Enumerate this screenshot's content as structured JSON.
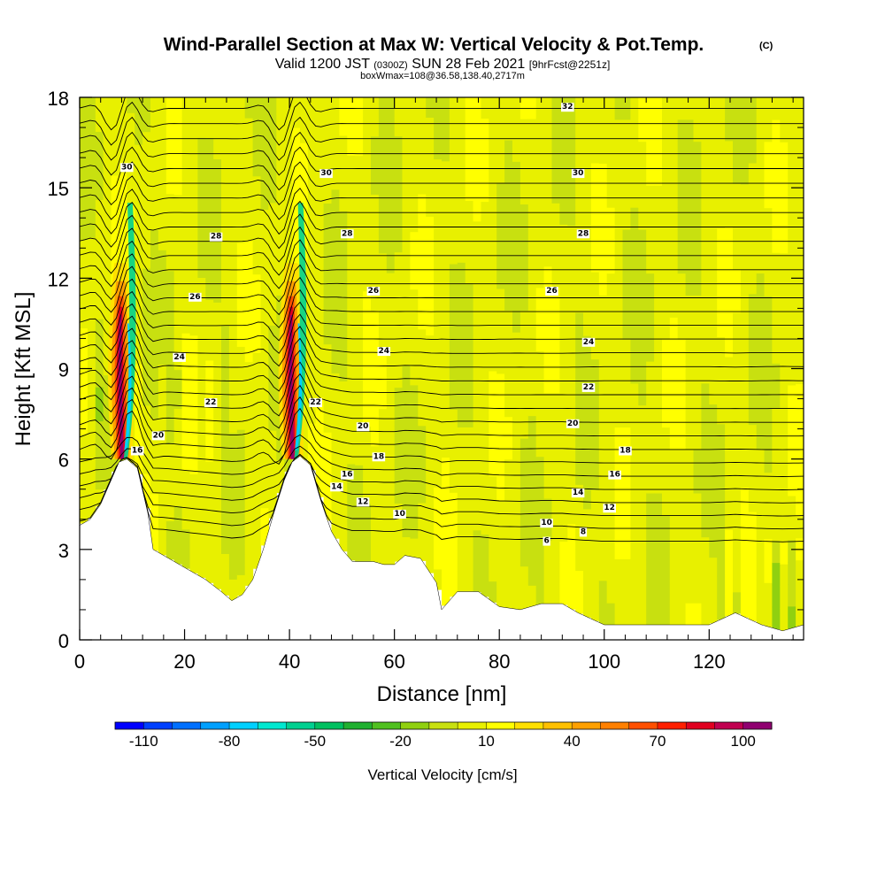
{
  "chart_data": {
    "type": "heatmap",
    "title": "Wind-Parallel Section at Max W: Vertical Velocity & Pot.Temp.",
    "title_mark": "(C)",
    "subtitle": {
      "valid": "Valid 1200 JST",
      "utc": "(0300Z)",
      "date": "SUN 28 Feb 2021",
      "forecast": "[9hrFcst@2251z]"
    },
    "box_info": "boxWmax=108@36.58,138.40,2717m",
    "xlabel": "Distance [nm]",
    "ylabel": "Height [Kft MSL]",
    "xlim": [
      0,
      138
    ],
    "ylim": [
      0,
      18
    ],
    "xticks": [
      0,
      20,
      40,
      60,
      80,
      100,
      120
    ],
    "yticks": [
      0,
      3,
      6,
      9,
      12,
      15,
      18
    ],
    "colorbar": {
      "label": "Vertical Velocity [cm/s]",
      "min": -120,
      "max": 110,
      "step": 10,
      "tick_values": [
        -110,
        -80,
        -50,
        -20,
        10,
        40,
        70,
        100
      ],
      "tick_labels": [
        "-110",
        "-80",
        "-50",
        "-20",
        "10",
        "40",
        "70",
        "100"
      ],
      "colors": [
        "#0000ff",
        "#0040ff",
        "#0070ff",
        "#00a0ff",
        "#00d0ff",
        "#00e8d0",
        "#00d090",
        "#00c060",
        "#20b030",
        "#50c020",
        "#90d010",
        "#c8e010",
        "#e8f000",
        "#ffff00",
        "#ffe000",
        "#ffc000",
        "#ffa000",
        "#ff8000",
        "#ff5000",
        "#ff2000",
        "#e00020",
        "#c00050",
        "#900070"
      ]
    },
    "terrain_kft": [
      [
        0,
        3.8
      ],
      [
        2,
        4.0
      ],
      [
        4,
        4.5
      ],
      [
        6,
        5.3
      ],
      [
        7.5,
        5.9
      ],
      [
        9,
        6.0
      ],
      [
        11,
        5.7
      ],
      [
        13,
        4.2
      ],
      [
        14,
        3.0
      ],
      [
        17,
        2.7
      ],
      [
        20,
        2.4
      ],
      [
        24,
        2.0
      ],
      [
        27,
        1.6
      ],
      [
        29,
        1.3
      ],
      [
        31,
        1.5
      ],
      [
        33,
        2.0
      ],
      [
        35,
        3.0
      ],
      [
        37,
        4.2
      ],
      [
        39,
        5.3
      ],
      [
        40.5,
        5.9
      ],
      [
        42,
        6.1
      ],
      [
        44,
        5.8
      ],
      [
        46,
        4.6
      ],
      [
        48,
        3.6
      ],
      [
        50,
        3.0
      ],
      [
        52,
        2.6
      ],
      [
        56,
        2.6
      ],
      [
        58,
        2.5
      ],
      [
        60,
        2.5
      ],
      [
        62,
        2.8
      ],
      [
        65,
        2.7
      ],
      [
        68,
        1.9
      ],
      [
        69,
        1.0
      ],
      [
        72,
        1.6
      ],
      [
        76,
        1.6
      ],
      [
        80,
        1.1
      ],
      [
        84,
        1.0
      ],
      [
        88,
        1.2
      ],
      [
        92,
        1.2
      ],
      [
        95,
        0.9
      ],
      [
        100,
        0.5
      ],
      [
        120,
        0.5
      ],
      [
        125,
        0.9
      ],
      [
        130,
        0.5
      ],
      [
        134,
        0.3
      ],
      [
        138,
        0.5
      ]
    ],
    "theta_contours": [
      {
        "value": 6,
        "label_x": 89,
        "label_y": 3.3
      },
      {
        "value": 8,
        "label_x": 96,
        "label_y": 3.6
      },
      {
        "value": 10,
        "label_x": 61,
        "label_y": 4.2,
        "label2_x": 89,
        "label2_y": 3.9
      },
      {
        "value": 12,
        "label_x": 54,
        "label_y": 4.6,
        "label2_x": 101,
        "label2_y": 4.4
      },
      {
        "value": 14,
        "label_x": 49,
        "label_y": 5.1,
        "label2_x": 95,
        "label2_y": 4.9
      },
      {
        "value": 16,
        "label_x": 11,
        "label_y": 6.3,
        "label2_x": 51,
        "label2_y": 5.5,
        "label3_x": 102,
        "label3_y": 5.5
      },
      {
        "value": 18,
        "label_x": 57,
        "label_y": 6.1,
        "label2_x": 104,
        "label2_y": 6.3
      },
      {
        "value": 20,
        "label_x": 15,
        "label_y": 6.8,
        "label2_x": 54,
        "label2_y": 7.1,
        "label3_x": 94,
        "label3_y": 7.2
      },
      {
        "value": 22,
        "label_x": 25,
        "label_y": 7.9,
        "label2_x": 45,
        "label2_y": 7.9,
        "label3_x": 97,
        "label3_y": 8.4
      },
      {
        "value": 24,
        "label_x": 19,
        "label_y": 9.4,
        "label2_x": 58,
        "label2_y": 9.6,
        "label3_x": 97,
        "label3_y": 9.9
      },
      {
        "value": 26,
        "label_x": 22,
        "label_y": 11.4,
        "label2_x": 56,
        "label2_y": 11.6,
        "label3_x": 90,
        "label3_y": 11.6
      },
      {
        "value": 28,
        "label_x": 26,
        "label_y": 13.4,
        "label2_x": 51,
        "label2_y": 13.5,
        "label3_x": 96,
        "label3_y": 13.5
      },
      {
        "value": 30,
        "label_x": 9,
        "label_y": 15.7,
        "label2_x": 47,
        "label2_y": 15.5,
        "label3_x": 95,
        "label3_y": 15.5
      },
      {
        "value": 32,
        "label_x": 93,
        "label_y": 17.7
      }
    ],
    "updraft_cores": [
      {
        "x": 7.5,
        "bottom": 6.0,
        "top": 12.5,
        "max": 108
      },
      {
        "x": 40.0,
        "bottom": 6.0,
        "top": 12.5,
        "max": 100
      }
    ]
  }
}
